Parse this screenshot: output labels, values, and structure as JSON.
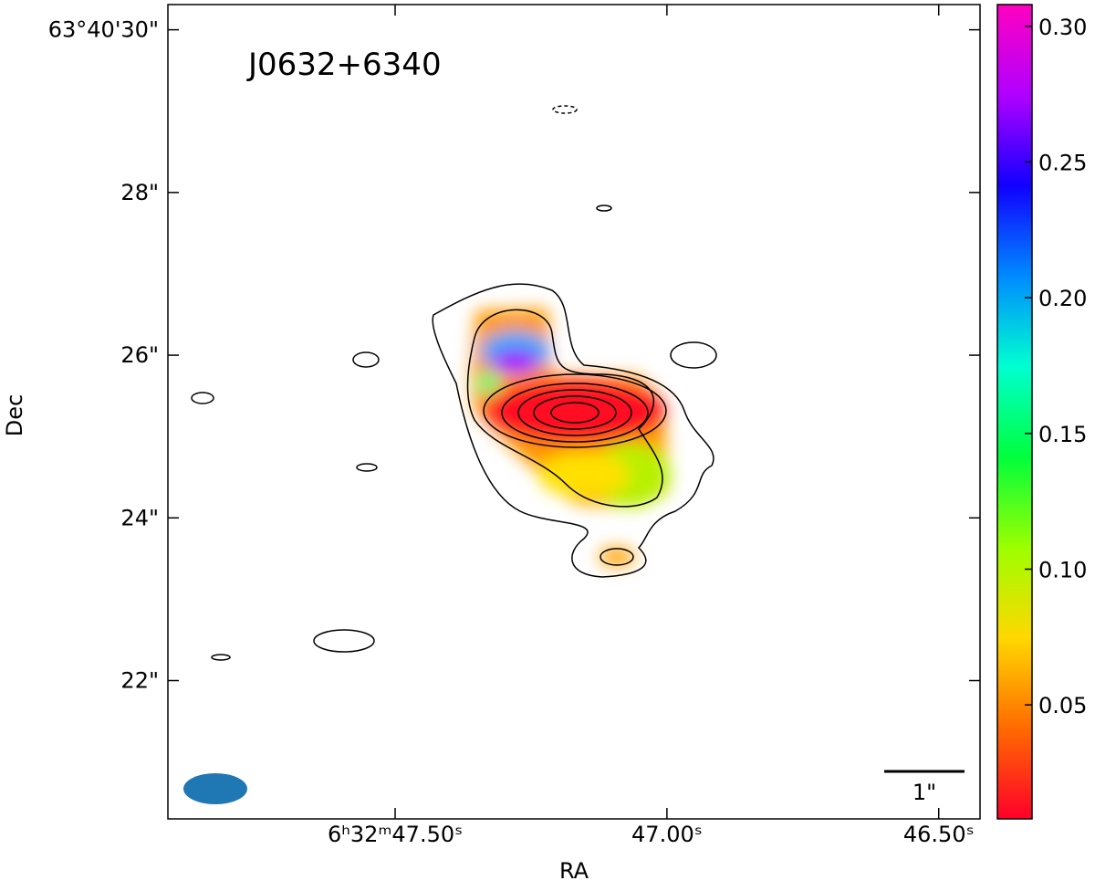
{
  "chart_data": {
    "type": "image",
    "title": "J0632+6340",
    "x_label": "RA",
    "y_label": "Dec",
    "xlim": [
      47.918,
      46.424
    ],
    "xticks": [
      {
        "value": 47.5,
        "label": "6ʰ32ᵐ47.50ˢ"
      },
      {
        "value": 47.0,
        "label": "47.00ˢ"
      },
      {
        "value": 46.5,
        "label": "46.50ˢ"
      }
    ],
    "ylim": [
      20.3,
      30.31
    ],
    "yticks": [
      {
        "value": 30,
        "label": "63°40'30\""
      },
      {
        "value": 28,
        "label": "28\""
      },
      {
        "value": 26,
        "label": "26\""
      },
      {
        "value": 24,
        "label": "24\""
      },
      {
        "value": 22,
        "label": "22\""
      }
    ],
    "colorbar": {
      "lim": [
        0.008,
        0.308
      ],
      "ticks": [
        {
          "value": 0.05,
          "label": "0.05"
        },
        {
          "value": 0.1,
          "label": "0.10"
        },
        {
          "value": 0.15,
          "label": "0.15"
        },
        {
          "value": 0.2,
          "label": "0.20"
        },
        {
          "value": 0.25,
          "label": "0.25"
        },
        {
          "value": 0.3,
          "label": "0.30"
        }
      ],
      "colormap": [
        "#ff0029",
        "#ff6a00",
        "#ffd800",
        "#9cff00",
        "#00ff3c",
        "#00ffd0",
        "#008aff",
        "#1000ff",
        "#b000ff",
        "#ff00c0"
      ]
    },
    "scale_bar_label": "1\""
  }
}
